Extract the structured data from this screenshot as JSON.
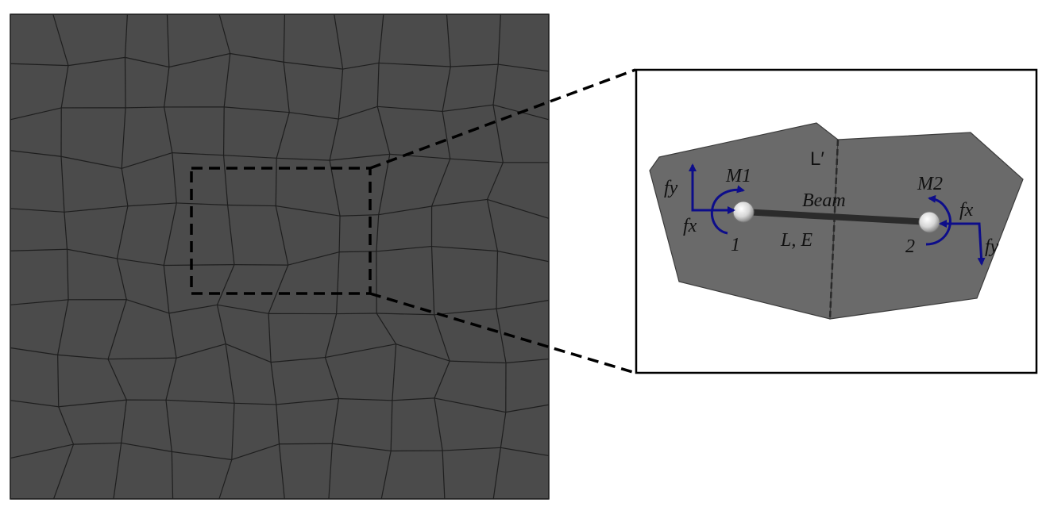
{
  "labels": {
    "m1": "M1",
    "m2": "M2",
    "beam": "Beam",
    "beam_props": "L, E",
    "l_prime": "L′",
    "fy_left": "fy",
    "fx_left": "fx",
    "fx_right": "fx",
    "fy_right": "fy",
    "node1": "1",
    "node2": "2"
  },
  "colors": {
    "mesh_fill": "#4b4b4b",
    "cell_fill": "#6a6a6a",
    "force_arrow": "#0d0d8a",
    "beam": "#2b2b2b"
  },
  "icons": {
    "node": "circle-node-icon",
    "moment": "curved-arrow-icon",
    "force": "straight-arrow-icon"
  }
}
